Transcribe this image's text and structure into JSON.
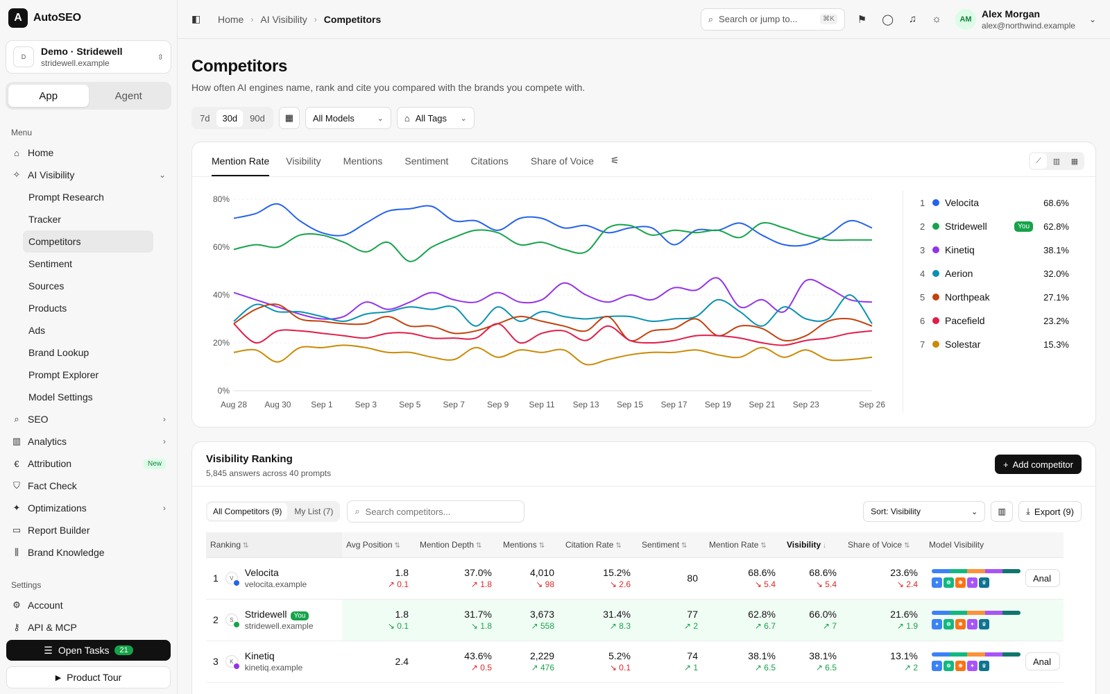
{
  "app": {
    "name": "AutoSEO",
    "logo_letter": "A"
  },
  "workspace": {
    "avatar": "D",
    "name": "Demo · Stridewell",
    "domain": "stridewell.example"
  },
  "mode_switch": {
    "items": [
      "App",
      "Agent"
    ],
    "active": "App"
  },
  "menu": {
    "label": "Menu",
    "items": [
      {
        "label": "Home",
        "icon": "home-icon",
        "glyph": "⌂"
      },
      {
        "label": "AI Visibility",
        "icon": "sparkle-icon",
        "glyph": "✧",
        "chevron": "⌄"
      },
      {
        "label": "SEO",
        "icon": "search-icon",
        "glyph": "⌕",
        "chevron": "›"
      },
      {
        "label": "Analytics",
        "icon": "bar-chart-icon",
        "glyph": "▥",
        "chevron": "›"
      },
      {
        "label": "Attribution",
        "icon": "euro-icon",
        "glyph": "€",
        "badge": "New"
      },
      {
        "label": "Fact Check",
        "icon": "shield-check-icon",
        "glyph": "⛉"
      },
      {
        "label": "Optimizations",
        "icon": "magic-wand-icon",
        "glyph": "✦",
        "chevron": "›"
      },
      {
        "label": "Report Builder",
        "icon": "monitor-icon",
        "glyph": "▭"
      },
      {
        "label": "Brand Knowledge",
        "icon": "library-icon",
        "glyph": "⫼"
      }
    ],
    "ai_visibility_sub": [
      "Prompt Research",
      "Tracker",
      "Competitors",
      "Sentiment",
      "Sources",
      "Products",
      "Ads",
      "Brand Lookup",
      "Prompt Explorer",
      "Model Settings"
    ],
    "active_sub": "Competitors"
  },
  "settings": {
    "label": "Settings",
    "items": [
      {
        "label": "Account",
        "icon": "gear-icon",
        "glyph": "⚙"
      },
      {
        "label": "API & MCP",
        "icon": "key-icon",
        "glyph": "⚷"
      }
    ]
  },
  "open_tasks": {
    "label": "Open Tasks",
    "count": "21"
  },
  "product_tour": {
    "label": "Product Tour"
  },
  "breadcrumb": [
    "Home",
    "AI Visibility",
    "Competitors"
  ],
  "search": {
    "placeholder": "Search or jump to...",
    "shortcut": "⌘K"
  },
  "user": {
    "initials": "AM",
    "name": "Alex Morgan",
    "email": "alex@northwind.example"
  },
  "page": {
    "title": "Competitors",
    "subtitle": "How often AI engines name, rank and cite you compared with the brands you compete with."
  },
  "filters": {
    "ranges": [
      "7d",
      "30d",
      "90d"
    ],
    "active_range": "30d",
    "models": "All Models",
    "tags": "All Tags"
  },
  "chart_tabs": [
    "Mention Rate",
    "Visibility",
    "Mentions",
    "Sentiment",
    "Citations",
    "Share of Voice"
  ],
  "active_chart_tab": "Mention Rate",
  "chart_data": {
    "type": "line",
    "x": [
      "Aug 28",
      "Aug 29",
      "Aug 30",
      "Aug 31",
      "Sep 1",
      "Sep 2",
      "Sep 3",
      "Sep 4",
      "Sep 5",
      "Sep 6",
      "Sep 7",
      "Sep 8",
      "Sep 9",
      "Sep 10",
      "Sep 11",
      "Sep 12",
      "Sep 13",
      "Sep 14",
      "Sep 15",
      "Sep 16",
      "Sep 17",
      "Sep 18",
      "Sep 19",
      "Sep 20",
      "Sep 21",
      "Sep 22",
      "Sep 23",
      "Sep 24",
      "Sep 25",
      "Sep 26"
    ],
    "xticks": [
      "Aug 28",
      "Aug 30",
      "Sep 1",
      "Sep 3",
      "Sep 5",
      "Sep 7",
      "Sep 9",
      "Sep 11",
      "Sep 13",
      "Sep 15",
      "Sep 17",
      "Sep 19",
      "Sep 21",
      "Sep 23",
      "Sep 26"
    ],
    "yticks": [
      "0%",
      "20%",
      "40%",
      "60%",
      "80%"
    ],
    "ylim": [
      0,
      80
    ],
    "grid": true,
    "series": [
      {
        "name": "Velocita",
        "color": "#2563eb",
        "values": [
          72,
          74,
          78,
          71,
          66,
          65,
          70,
          75,
          76,
          77,
          71,
          71,
          67,
          72,
          72,
          68,
          69,
          66,
          68,
          68,
          61,
          67,
          67,
          70,
          65,
          61,
          61,
          65,
          71,
          68
        ]
      },
      {
        "name": "Stridewell",
        "color": "#16a34a",
        "values": [
          59,
          61,
          60,
          65,
          65,
          62,
          58,
          62,
          54,
          60,
          64,
          67,
          66,
          61,
          62,
          59,
          58,
          68,
          69,
          65,
          67,
          66,
          67,
          64,
          70,
          68,
          65,
          63,
          63,
          63
        ]
      },
      {
        "name": "Kinetiq",
        "color": "#9333ea",
        "values": [
          41,
          38,
          35,
          32,
          30,
          31,
          37,
          34,
          37,
          41,
          38,
          37,
          41,
          37,
          38,
          45,
          40,
          37,
          40,
          38,
          43,
          42,
          47,
          35,
          38,
          33,
          46,
          43,
          38,
          37
        ]
      },
      {
        "name": "Aerion",
        "color": "#0891b2",
        "values": [
          29,
          36,
          33,
          33,
          31,
          29,
          32,
          33,
          35,
          34,
          35,
          27,
          35,
          29,
          33,
          31,
          30,
          31,
          31,
          29,
          30,
          31,
          38,
          33,
          27,
          35,
          30,
          30,
          40,
          28
        ]
      },
      {
        "name": "Northpeak",
        "color": "#c2410c",
        "values": [
          28,
          34,
          36,
          30,
          29,
          28,
          28,
          31,
          27,
          27,
          24,
          25,
          28,
          31,
          29,
          27,
          25,
          31,
          21,
          25,
          26,
          30,
          23,
          27,
          26,
          21,
          23,
          29,
          30,
          27
        ]
      },
      {
        "name": "Pacefield",
        "color": "#e11d48",
        "values": [
          28,
          20,
          25,
          25,
          24,
          23,
          22,
          24,
          24,
          22,
          22,
          22,
          28,
          20,
          24,
          25,
          21,
          27,
          21,
          20,
          21,
          23,
          23,
          22,
          20,
          19,
          21,
          22,
          24,
          25
        ]
      },
      {
        "name": "Solestar",
        "color": "#ca8a04",
        "values": [
          16,
          17,
          12,
          18,
          18,
          19,
          18,
          16,
          16,
          14,
          13,
          18,
          14,
          17,
          16,
          17,
          11,
          13,
          15,
          16,
          16,
          17,
          15,
          14,
          18,
          14,
          17,
          13,
          13,
          14
        ]
      }
    ]
  },
  "legend": [
    {
      "rank": "1",
      "name": "Velocita",
      "color": "#2563eb",
      "value": "68.6%"
    },
    {
      "rank": "2",
      "name": "Stridewell",
      "color": "#16a34a",
      "value": "62.8%",
      "you": "You"
    },
    {
      "rank": "3",
      "name": "Kinetiq",
      "color": "#9333ea",
      "value": "38.1%"
    },
    {
      "rank": "4",
      "name": "Aerion",
      "color": "#0891b2",
      "value": "32.0%"
    },
    {
      "rank": "5",
      "name": "Northpeak",
      "color": "#c2410c",
      "value": "27.1%"
    },
    {
      "rank": "6",
      "name": "Pacefield",
      "color": "#e11d48",
      "value": "23.2%"
    },
    {
      "rank": "7",
      "name": "Solestar",
      "color": "#ca8a04",
      "value": "15.3%"
    }
  ],
  "ranking": {
    "title": "Visibility Ranking",
    "subtitle": "5,845 answers across 40 prompts",
    "add_label": "Add competitor",
    "lists": [
      "All Competitors (9)",
      "My List (7)"
    ],
    "active_list": "All Competitors (9)",
    "search_placeholder": "Search competitors...",
    "sort": "Sort: Visibility",
    "export": "Export (9)",
    "columns": [
      "Ranking",
      "Avg Position",
      "Mention Depth",
      "Mentions",
      "Citation Rate",
      "Sentiment",
      "Mention Rate",
      "Visibility",
      "Share of Voice",
      "Model Visibility"
    ],
    "sorted_column": "Visibility",
    "analyze_label": "Analyze",
    "rows": [
      {
        "rank": "1",
        "avatar": "V",
        "color": "#2563eb",
        "name": "Velocita",
        "domain": "velocita.example",
        "cells": [
          [
            "1.8",
            "↗ 0.1",
            "down"
          ],
          [
            "37.0%",
            "↗ 1.8",
            "down"
          ],
          [
            "4,010",
            "↘ 98",
            "down"
          ],
          [
            "15.2%",
            "↘ 2.6",
            "down"
          ],
          [
            "80",
            "",
            ""
          ],
          [
            "68.6%",
            "↘ 5.4",
            "down"
          ],
          [
            "68.6%",
            "↘ 5.4",
            "down"
          ],
          [
            "23.6%",
            "↘ 2.4",
            "down"
          ]
        ]
      },
      {
        "rank": "2",
        "avatar": "S",
        "color": "#16a34a",
        "name": "Stridewell",
        "you": "You",
        "domain": "stridewell.example",
        "cells": [
          [
            "1.8",
            "↘ 0.1",
            "up"
          ],
          [
            "31.7%",
            "↘ 1.8",
            "up"
          ],
          [
            "3,673",
            "↗ 558",
            "up"
          ],
          [
            "31.4%",
            "↗ 8.3",
            "up"
          ],
          [
            "77",
            "↗ 2",
            "up"
          ],
          [
            "62.8%",
            "↗ 6.7",
            "up"
          ],
          [
            "66.0%",
            "↗ 7",
            "up"
          ],
          [
            "21.6%",
            "↗ 1.9",
            "up"
          ]
        ]
      },
      {
        "rank": "3",
        "avatar": "K",
        "color": "#9333ea",
        "name": "Kinetiq",
        "domain": "kinetiq.example",
        "cells": [
          [
            "2.4",
            "",
            ""
          ],
          [
            "43.6%",
            "↗ 0.5",
            "down"
          ],
          [
            "2,229",
            "↗ 476",
            "up"
          ],
          [
            "5.2%",
            "↘ 0.1",
            "down"
          ],
          [
            "74",
            "↗ 1",
            "up"
          ],
          [
            "38.1%",
            "↗ 6.5",
            "up"
          ],
          [
            "38.1%",
            "↗ 6.5",
            "up"
          ],
          [
            "13.1%",
            "↗ 2",
            "up"
          ]
        ]
      }
    ],
    "model_bar_colors": [
      "#3b82f6",
      "#10b981",
      "#fb923c",
      "#a855f7",
      "#0f766e"
    ],
    "model_icon_colors": [
      "#3b82f6",
      "#10b981",
      "#f97316",
      "#a855f7",
      "#0e7490"
    ],
    "model_icon_glyphs": [
      "✦",
      "❁",
      "✺",
      "✦",
      "♛"
    ]
  }
}
